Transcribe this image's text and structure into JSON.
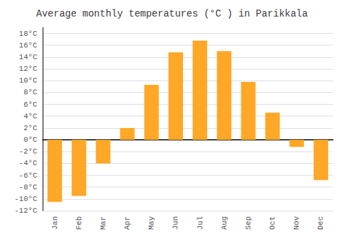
{
  "chart_data": {
    "type": "bar",
    "title": "Average monthly temperatures (°C ) in Parikkala",
    "categories": [
      "Jan",
      "Feb",
      "Mar",
      "Apr",
      "May",
      "Jun",
      "Jul",
      "Aug",
      "Sep",
      "Oct",
      "Nov",
      "Dec"
    ],
    "values": [
      -10.5,
      -9.5,
      -4.0,
      2.0,
      9.3,
      14.8,
      16.8,
      15.0,
      9.8,
      4.6,
      -1.2,
      -6.8
    ],
    "color": "#FFA726",
    "ylim": [
      -12,
      19
    ],
    "yticks": [
      {
        "value": -12,
        "label": "-12°C"
      },
      {
        "value": -10,
        "label": "-10°C"
      },
      {
        "value": -8,
        "label": "-8°C"
      },
      {
        "value": -6,
        "label": "-6°C"
      },
      {
        "value": -4,
        "label": "-4°C"
      },
      {
        "value": -2,
        "label": "-2°C"
      },
      {
        "value": 0,
        "label": "0°C"
      },
      {
        "value": 2,
        "label": "2°C"
      },
      {
        "value": 4,
        "label": "4°C"
      },
      {
        "value": 6,
        "label": "6°C"
      },
      {
        "value": 8,
        "label": "8°C"
      },
      {
        "value": 10,
        "label": "10°C"
      },
      {
        "value": 12,
        "label": "12°C"
      },
      {
        "value": 14,
        "label": "14°C"
      },
      {
        "value": 16,
        "label": "16°C"
      },
      {
        "value": 18,
        "label": "18°C"
      }
    ],
    "grid": true
  }
}
